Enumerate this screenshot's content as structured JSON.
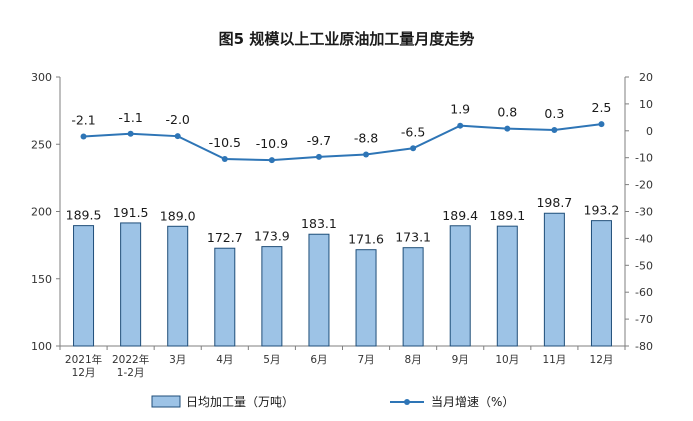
{
  "chart_data": {
    "type": "bar",
    "title": "图5  规模以上工业原油加工量月度走势",
    "categories": [
      [
        "2021年",
        "12月"
      ],
      [
        "2022年",
        "1-2月"
      ],
      [
        "3月"
      ],
      [
        "4月"
      ],
      [
        "5月"
      ],
      [
        "6月"
      ],
      [
        "7月"
      ],
      [
        "8月"
      ],
      [
        "9月"
      ],
      [
        "10月"
      ],
      [
        "11月"
      ],
      [
        "12月"
      ]
    ],
    "series": [
      {
        "name": "日均加工量（万吨）",
        "type": "bar",
        "axis": "left",
        "values": [
          189.5,
          191.5,
          189.0,
          172.7,
          173.9,
          183.1,
          171.6,
          173.1,
          189.4,
          189.1,
          198.7,
          193.2
        ],
        "labels": [
          "189.5",
          "191.5",
          "189.0",
          "172.7",
          "173.9",
          "183.1",
          "171.6",
          "173.1",
          "189.4",
          "189.1",
          "198.7",
          "193.2"
        ],
        "color": "#9DC3E6"
      },
      {
        "name": "当月增速（%）",
        "type": "line",
        "axis": "right",
        "values": [
          -2.1,
          -1.1,
          -2.0,
          -10.5,
          -10.9,
          -9.7,
          -8.8,
          -6.5,
          1.9,
          0.8,
          0.3,
          2.5
        ],
        "labels": [
          "-2.1",
          "-1.1",
          "-2.0",
          "-10.5",
          "-10.9",
          "-9.7",
          "-8.8",
          "-6.5",
          "1.9",
          "0.8",
          "0.3",
          "2.5"
        ],
        "color": "#2E75B6"
      }
    ],
    "y_left": {
      "min": 100,
      "max": 300,
      "ticks": [
        "100",
        "150",
        "200",
        "250",
        "300"
      ]
    },
    "y_right": {
      "min": -80,
      "max": 20,
      "ticks": [
        "-80",
        "-70",
        "-60",
        "-50",
        "-40",
        "-30",
        "-20",
        "-10",
        "0",
        "10",
        "20"
      ]
    },
    "grid": false,
    "legend_position": "bottom",
    "bar_edge_color": "#1F4E79"
  }
}
